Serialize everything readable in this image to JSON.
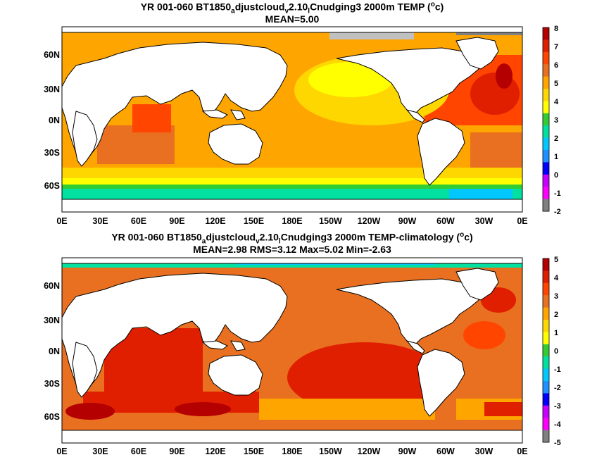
{
  "panels": [
    {
      "title_parts": [
        "YR 001-060 BT1850",
        "a",
        "djustcloud",
        "v",
        "2.10",
        "l",
        "Cnudging3 2000m TEMP (",
        "o",
        "c)"
      ],
      "stats": "MEAN=5.00",
      "colorbar": {
        "labels": [
          "8",
          "7",
          "6",
          "5",
          "4",
          "3",
          "2",
          "1",
          "0",
          "-1",
          "-2"
        ],
        "colors": [
          "#b40000",
          "#e01e00",
          "#ff4500",
          "#e87020",
          "#ffa500",
          "#ffd700",
          "#ffff00",
          "#32cd32",
          "#00e0a0",
          "#00c8ff",
          "#1e90ff",
          "#0000ff",
          "#c800ff",
          "#ff00ff",
          "#808080"
        ]
      }
    },
    {
      "title_parts": [
        "YR 001-060 BT1850",
        "a",
        "djustcloud",
        "v",
        "2.10",
        "l",
        "Cnudging3 2000m TEMP-climatology (",
        "o",
        "c)"
      ],
      "stats": "MEAN=2.98   RMS=3.12   Max=5.02   Min=-2.63",
      "colorbar": {
        "labels": [
          "5",
          "4",
          "3",
          "2",
          "1",
          "0",
          "-1",
          "-2",
          "-3",
          "-4",
          "-5"
        ],
        "colors": [
          "#b40000",
          "#e01e00",
          "#ff4500",
          "#e87020",
          "#ffa500",
          "#ffd700",
          "#ffff00",
          "#32cd32",
          "#00e0a0",
          "#00c8ff",
          "#1e90ff",
          "#0000ff",
          "#c800ff",
          "#ff00ff",
          "#808080"
        ]
      }
    }
  ],
  "axes": {
    "x_labels": [
      "0E",
      "30E",
      "60E",
      "90E",
      "120E",
      "150E",
      "180E",
      "150W",
      "120W",
      "90W",
      "60W",
      "30W",
      "0E"
    ],
    "y_labels": [
      "60N",
      "30N",
      "0N",
      "30S",
      "60S"
    ]
  }
}
